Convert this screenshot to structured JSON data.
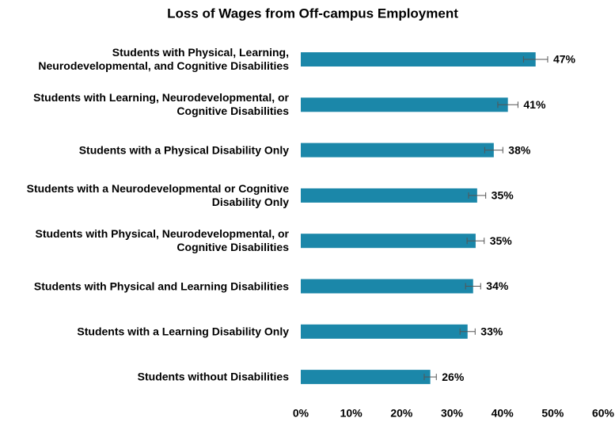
{
  "chart_data": {
    "type": "bar",
    "orientation": "horizontal",
    "title": "Loss of Wages from Off-campus Employment",
    "categories": [
      "Students with Physical, Learning, Neurodevelopmental, and Cognitive Disabilities",
      "Students with Learning, Neurodevelopmental, or Cognitive Disabilities",
      "Students with a Physical Disability Only",
      "Students with a Neurodevelopmental or Cognitive Disability Only",
      "Students with Physical, Neurodevelopmental, or Cognitive Disabilities",
      "Students with Physical and Learning Disabilities",
      "Students with a Learning Disability Only",
      "Students without Disabilities"
    ],
    "values": [
      46.6,
      41.1,
      38.3,
      35.0,
      34.7,
      34.2,
      33.1,
      25.7
    ],
    "value_labels": [
      "47%",
      "41%",
      "38%",
      "35%",
      "35%",
      "34%",
      "33%",
      "26%"
    ],
    "errors": [
      2.4,
      2.0,
      1.8,
      1.7,
      1.7,
      1.5,
      1.5,
      1.2
    ],
    "color": "#1b87a9",
    "xlim": [
      0,
      60
    ],
    "xticks": [
      {
        "value": 0,
        "label": "0%"
      },
      {
        "value": 10,
        "label": "10%"
      },
      {
        "value": 20,
        "label": "20%"
      },
      {
        "value": 30,
        "label": "30%"
      },
      {
        "value": 40,
        "label": "40%"
      },
      {
        "value": 50,
        "label": "50%"
      },
      {
        "value": 60,
        "label": "60%"
      }
    ],
    "grid": false
  }
}
